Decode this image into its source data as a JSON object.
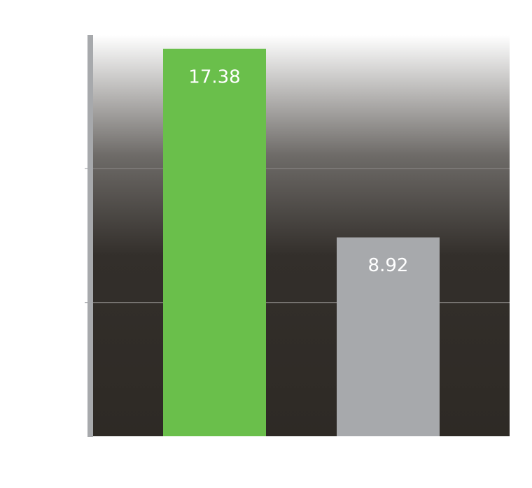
{
  "chart_data": {
    "type": "bar",
    "categories": [
      null,
      null
    ],
    "values": [
      17.38,
      8.92
    ],
    "colors": [
      "#6abf4b",
      "#a7a9ac"
    ],
    "ylim": [
      0,
      18
    ],
    "yticks": [
      6,
      12
    ],
    "grid": true
  }
}
